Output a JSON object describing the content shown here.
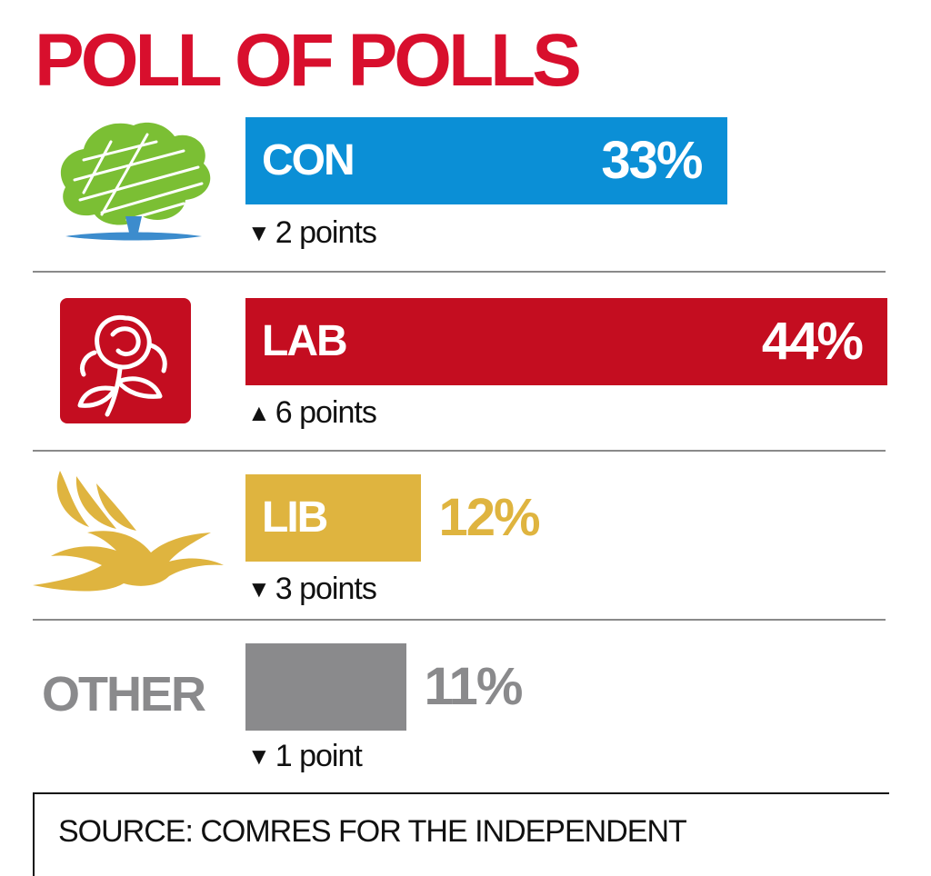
{
  "colors": {
    "title": "#d80f2d",
    "con": "#0b8fd6",
    "lab": "#c40d20",
    "lib": "#dfb43f",
    "other": "#8a8a8c",
    "con_logo": "#7bbf34",
    "con_logo_base": "#3c8ccd"
  },
  "chart_data": {
    "type": "bar",
    "title": "POLL OF POLLS",
    "categories": [
      "CON",
      "LAB",
      "LIB",
      "OTHER"
    ],
    "values": [
      33,
      44,
      12,
      11
    ],
    "value_labels": [
      "33%",
      "44%",
      "12%",
      "11%"
    ],
    "changes": [
      {
        "direction": "down",
        "text": "2 points"
      },
      {
        "direction": "up",
        "text": "6 points"
      },
      {
        "direction": "down",
        "text": "3 points"
      },
      {
        "direction": "down",
        "text": "1 point"
      }
    ],
    "source": "SOURCE: COMRES FOR THE INDEPENDENT"
  }
}
